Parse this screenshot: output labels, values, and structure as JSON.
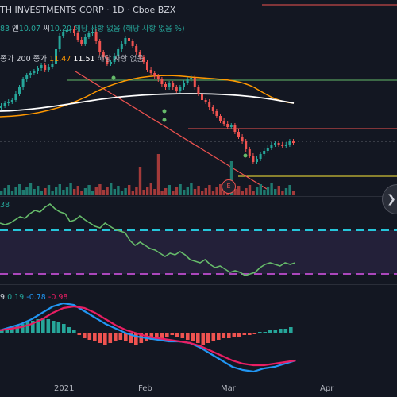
{
  "header": {
    "title": "TH INVESTMENTS CORP · 1D · Cboe BZX",
    "ohlc": {
      "prefix": "83",
      "l_label": "앤",
      "l_value": "10.07",
      "c_label": "씨",
      "c_value": "10.20",
      "na_text": "해당 사항 없음",
      "na_paren": "(해당 사항 없음 %)"
    },
    "ma": {
      "label": "종가 200 종가",
      "v1": "11.47",
      "v2": "11.51",
      "na_text": "해당 사항 없음"
    }
  },
  "rsi": {
    "value": "38"
  },
  "macd": {
    "param": "9",
    "hist": "0.19",
    "macd": "-0.78",
    "signal": "-0.98"
  },
  "earnings_marker": "E",
  "x_axis_ticks": [
    "2021",
    "Feb",
    "Mar",
    "Apr"
  ],
  "colors": {
    "up": "#26a69a",
    "down": "#ef5350",
    "bg": "#131722",
    "ma_white": "#ffffff",
    "ma_orange": "#ff9800",
    "rsi_line": "#66bb6a",
    "macd_blue": "#2196f3",
    "macd_red": "#e91e63"
  },
  "icons": {
    "scroll_right": "chevron-right-icon"
  }
}
